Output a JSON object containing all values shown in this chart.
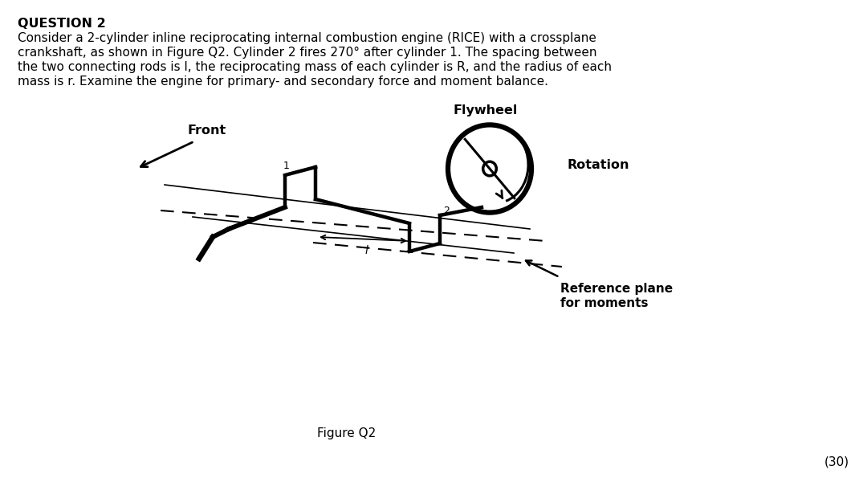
{
  "title": "QUESTION 2",
  "q_line1": "Consider a 2-cylinder inline reciprocating internal combustion engine (RICE) with a crossplane",
  "q_line2": "crankshaft, as shown in Figure Q2. Cylinder 2 fires 270° after cylinder 1. The spacing between",
  "q_line3": "the two connecting rods is l, the reciprocating mass of each cylinder is R, and the radius of each",
  "q_line4": "mass is r. Examine the engine for primary- and secondary force and moment balance.",
  "fig_caption": "Figure Q2",
  "marks": "(30)",
  "lbl_flywheel": "Flywheel",
  "lbl_front": "Front",
  "lbl_rotation": "Rotation",
  "lbl_ref1": "Reference plane",
  "lbl_ref2": "for moments",
  "bg": "#ffffff",
  "fg": "#000000"
}
